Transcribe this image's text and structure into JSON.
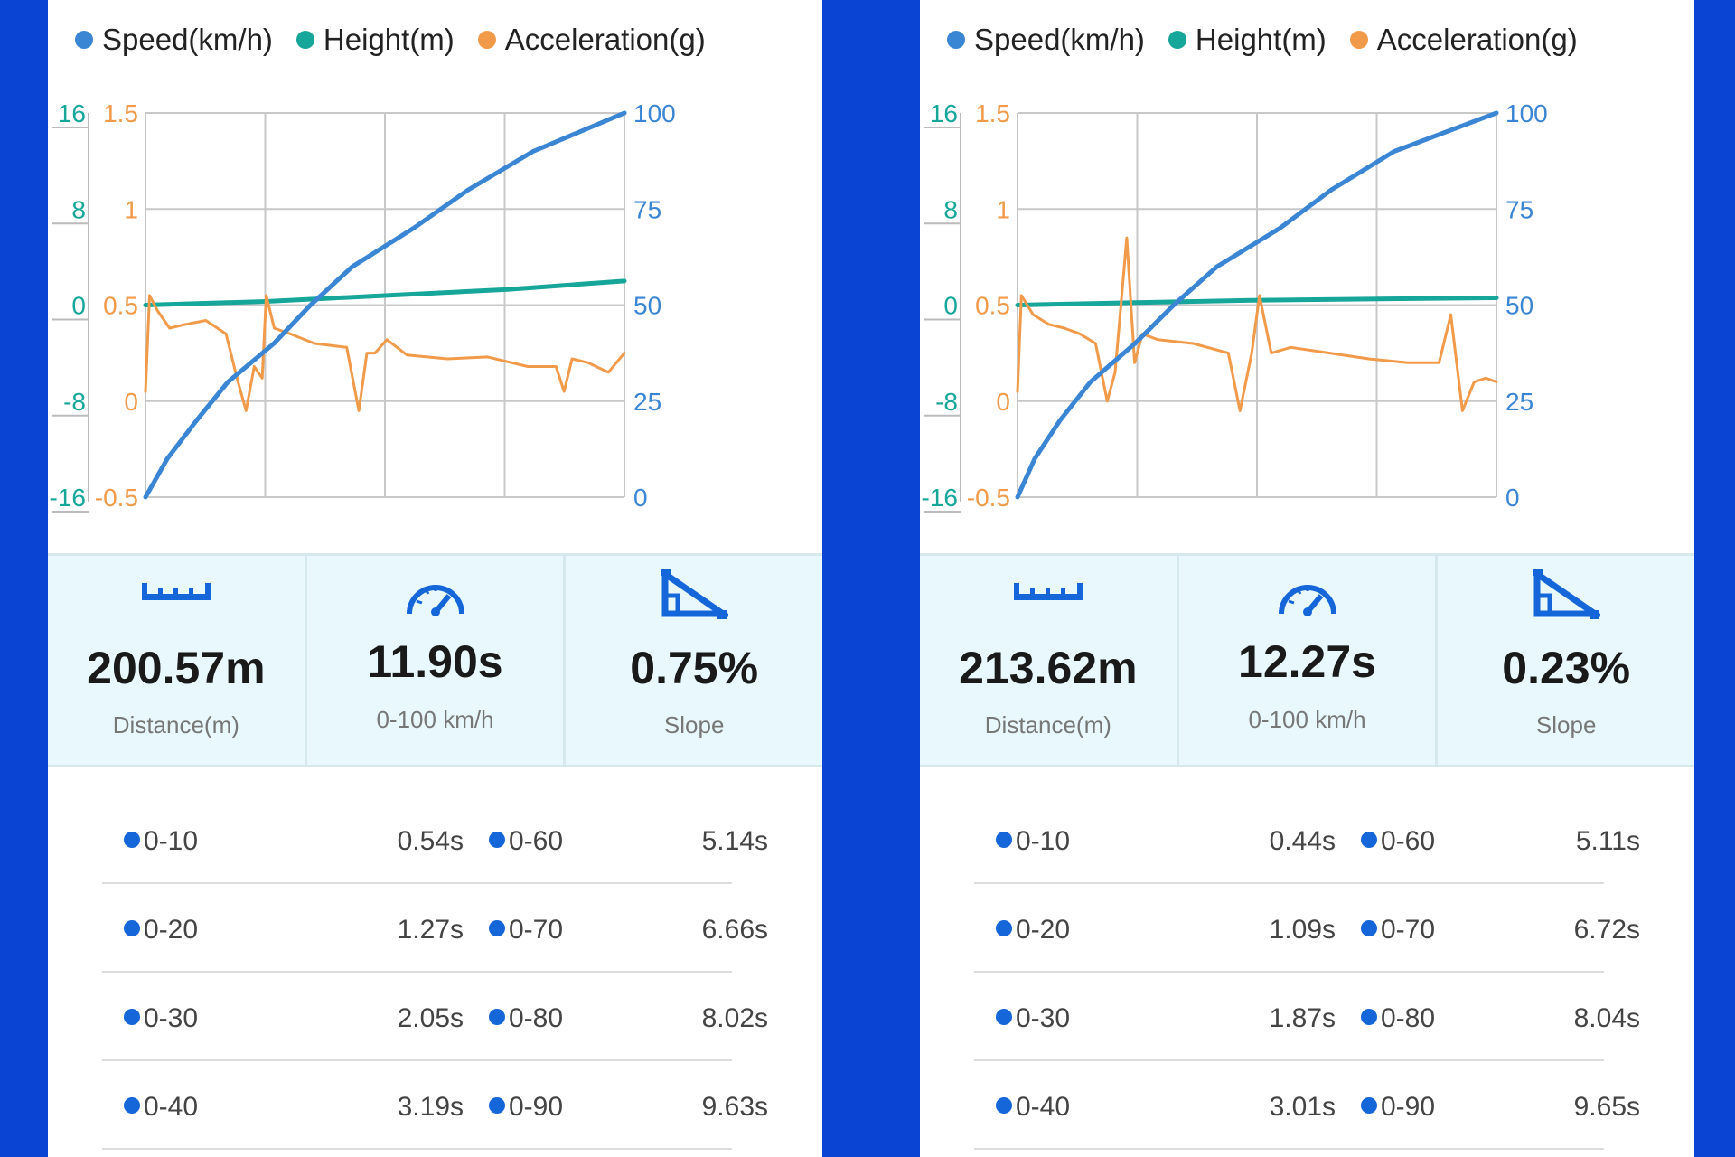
{
  "colors": {
    "speed": "#3a86d4",
    "height": "#17a69a",
    "accel": "#f09a4a",
    "grid": "#c8c8c8"
  },
  "legend": [
    {
      "label": "Speed(km/h)",
      "color": "#3a86d4"
    },
    {
      "label": "Height(m)",
      "color": "#17a69a"
    },
    {
      "label": "Acceleration(g)",
      "color": "#f09a4a"
    }
  ],
  "panels": [
    {
      "stats": [
        {
          "icon": "ruler-icon",
          "value": "200.57m",
          "label": "Distance(m)"
        },
        {
          "icon": "speedometer-icon",
          "value": "11.90s",
          "label": "0-100 km/h"
        },
        {
          "icon": "slope-icon",
          "value": "0.75%",
          "label": "Slope"
        }
      ],
      "splits": [
        [
          {
            "label": "0-10",
            "time": "0.54s"
          },
          {
            "label": "0-60",
            "time": "5.14s"
          }
        ],
        [
          {
            "label": "0-20",
            "time": "1.27s"
          },
          {
            "label": "0-70",
            "time": "6.66s"
          }
        ],
        [
          {
            "label": "0-30",
            "time": "2.05s"
          },
          {
            "label": "0-80",
            "time": "8.02s"
          }
        ],
        [
          {
            "label": "0-40",
            "time": "3.19s"
          },
          {
            "label": "0-90",
            "time": "9.63s"
          }
        ]
      ]
    },
    {
      "stats": [
        {
          "icon": "ruler-icon",
          "value": "213.62m",
          "label": "Distance(m)"
        },
        {
          "icon": "speedometer-icon",
          "value": "12.27s",
          "label": "0-100 km/h"
        },
        {
          "icon": "slope-icon",
          "value": "0.23%",
          "label": "Slope"
        }
      ],
      "splits": [
        [
          {
            "label": "0-10",
            "time": "0.44s"
          },
          {
            "label": "0-60",
            "time": "5.11s"
          }
        ],
        [
          {
            "label": "0-20",
            "time": "1.09s"
          },
          {
            "label": "0-70",
            "time": "6.72s"
          }
        ],
        [
          {
            "label": "0-30",
            "time": "1.87s"
          },
          {
            "label": "0-80",
            "time": "8.04s"
          }
        ],
        [
          {
            "label": "0-40",
            "time": "3.01s"
          },
          {
            "label": "0-90",
            "time": "9.65s"
          }
        ]
      ]
    }
  ],
  "chart_data": [
    {
      "type": "line",
      "x_range": [
        0,
        11.9
      ],
      "axes": {
        "height": {
          "ticks": [
            "16",
            "8",
            "0",
            "-8",
            "-16"
          ],
          "range": [
            -16,
            16
          ],
          "color": "#17a69a"
        },
        "accel": {
          "ticks": [
            "1.5",
            "1",
            "0.5",
            "0",
            "-0.5"
          ],
          "range": [
            -0.5,
            1.5
          ],
          "color": "#f09a4a"
        },
        "speed": {
          "ticks": [
            "100",
            "75",
            "50",
            "25",
            "0"
          ],
          "range": [
            0,
            100
          ],
          "color": "#3a86d4"
        }
      },
      "grid": true,
      "legend_position": "top",
      "series": [
        {
          "name": "Speed(km/h)",
          "axis": "speed",
          "x": [
            0,
            0.54,
            1.27,
            2.05,
            3.19,
            4.1,
            5.14,
            6.66,
            8.02,
            9.63,
            11.9
          ],
          "y": [
            0,
            10,
            20,
            30,
            40,
            50,
            60,
            70,
            80,
            90,
            100
          ]
        },
        {
          "name": "Height(m)",
          "axis": "height",
          "x": [
            0,
            3,
            6,
            9,
            11.9
          ],
          "y": [
            0,
            0.3,
            0.8,
            1.3,
            2
          ]
        },
        {
          "name": "Acceleration(g)",
          "axis": "accel",
          "x": [
            0,
            0.1,
            0.3,
            0.6,
            1.0,
            1.5,
            2.0,
            2.3,
            2.5,
            2.7,
            2.9,
            3.0,
            3.2,
            3.6,
            4.2,
            5.0,
            5.3,
            5.5,
            5.7,
            6.0,
            6.5,
            7.5,
            8.5,
            9.5,
            10.2,
            10.4,
            10.6,
            11.0,
            11.5,
            11.9
          ],
          "y": [
            0.05,
            0.55,
            0.47,
            0.38,
            0.4,
            0.42,
            0.35,
            0.1,
            -0.05,
            0.18,
            0.12,
            0.55,
            0.38,
            0.35,
            0.3,
            0.28,
            -0.05,
            0.25,
            0.25,
            0.32,
            0.24,
            0.22,
            0.23,
            0.18,
            0.18,
            0.05,
            0.22,
            0.2,
            0.15,
            0.25
          ]
        }
      ]
    },
    {
      "type": "line",
      "x_range": [
        0,
        12.27
      ],
      "axes": {
        "height": {
          "ticks": [
            "16",
            "8",
            "0",
            "-8",
            "-16"
          ],
          "range": [
            -16,
            16
          ],
          "color": "#17a69a"
        },
        "accel": {
          "ticks": [
            "1.5",
            "1",
            "0.5",
            "0",
            "-0.5"
          ],
          "range": [
            -0.5,
            1.5
          ],
          "color": "#f09a4a"
        },
        "speed": {
          "ticks": [
            "100",
            "75",
            "50",
            "25",
            "0"
          ],
          "range": [
            0,
            100
          ],
          "color": "#3a86d4"
        }
      },
      "grid": true,
      "legend_position": "top",
      "series": [
        {
          "name": "Speed(km/h)",
          "axis": "speed",
          "x": [
            0,
            0.44,
            1.09,
            1.87,
            3.01,
            4.0,
            5.11,
            6.72,
            8.04,
            9.65,
            12.27
          ],
          "y": [
            0,
            10,
            20,
            30,
            40,
            50,
            60,
            70,
            80,
            90,
            100
          ]
        },
        {
          "name": "Height(m)",
          "axis": "height",
          "x": [
            0,
            3,
            6,
            9,
            12.27
          ],
          "y": [
            0,
            0.2,
            0.4,
            0.5,
            0.6
          ]
        },
        {
          "name": "Acceleration(g)",
          "axis": "accel",
          "x": [
            0,
            0.1,
            0.4,
            0.8,
            1.2,
            1.6,
            2.0,
            2.3,
            2.5,
            2.8,
            3.0,
            3.2,
            3.6,
            4.5,
            5.4,
            5.7,
            6.0,
            6.2,
            6.5,
            7.0,
            8.0,
            9.0,
            10.0,
            10.8,
            11.1,
            11.4,
            11.7,
            12.0,
            12.27
          ],
          "y": [
            0.05,
            0.55,
            0.45,
            0.4,
            0.38,
            0.35,
            0.3,
            0.0,
            0.15,
            0.85,
            0.2,
            0.35,
            0.32,
            0.3,
            0.25,
            -0.05,
            0.25,
            0.55,
            0.25,
            0.28,
            0.25,
            0.22,
            0.2,
            0.2,
            0.45,
            -0.05,
            0.1,
            0.12,
            0.1
          ]
        }
      ]
    }
  ]
}
